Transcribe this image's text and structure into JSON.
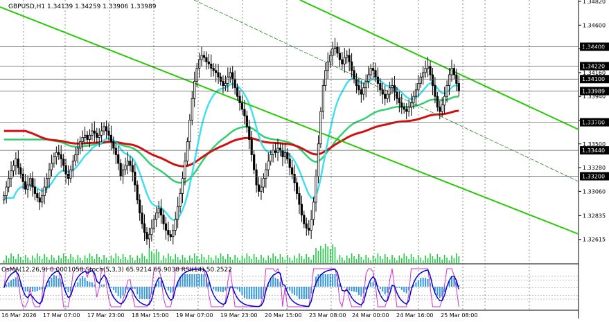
{
  "title": "GBPUSD,H1  1.34139 1.34259 1.33906 1.33989",
  "indicator_title": "OsMA(12,26,9) 0.0001058  Stoch(5,3,3) 65.9214 65.9038  RSI(14) 50.2522",
  "colors": {
    "background": "#ffffff",
    "bull": "#000000",
    "bear": "#000000",
    "ema_red": "#d01010",
    "ema_green": "#30d070",
    "ema_cyan": "#40e0f0",
    "channel": "#22cc00",
    "level_label_bg": "#000000",
    "volume": "#22cc44",
    "osma": "#3399dd",
    "stoch_main": "#000080",
    "stoch_signal": "#cc33cc",
    "rsi": "#0000cc"
  },
  "chart_data": {
    "type": "candlestick",
    "symbol": "GBPUSD",
    "timeframe": "H1",
    "ylim": [
      1.32395,
      1.3482
    ],
    "price_ticks": [
      "1.34820",
      "1.34600",
      "1.34380",
      "1.34160",
      "1.33940",
      "1.33720",
      "1.33500",
      "1.33280",
      "1.33060",
      "1.32835",
      "1.32615",
      "1.32395"
    ],
    "levels": [
      {
        "value": 1.344,
        "label": "1.34400"
      },
      {
        "value": 1.3422,
        "label": "1.34220"
      },
      {
        "value": 1.341,
        "label": "1.34100"
      },
      {
        "value": 1.33989,
        "label": "1.33989"
      },
      {
        "value": 1.337,
        "label": "1.33700"
      },
      {
        "value": 1.3344,
        "label": "1.33440"
      },
      {
        "value": 1.332,
        "label": "1.33200"
      }
    ],
    "x_labels": [
      "16 Mar 2026",
      "17 Mar 07:00",
      "17 Mar 23:00",
      "18 Mar 15:00",
      "19 Mar 07:00",
      "19 Mar 23:00",
      "20 Mar 15:00",
      "23 Mar 08:00",
      "24 Mar 00:00",
      "24 Mar 16:00",
      "25 Mar 08:00"
    ],
    "closes": [
      1.3302,
      1.331,
      1.3318,
      1.3325,
      1.333,
      1.3336,
      1.3328,
      1.3322,
      1.3315,
      1.3308,
      1.3312,
      1.3318,
      1.331,
      1.3304,
      1.33,
      1.3296,
      1.3302,
      1.331,
      1.3318,
      1.3326,
      1.3332,
      1.3338,
      1.3342,
      1.334,
      1.3336,
      1.333,
      1.3322,
      1.3318,
      1.3326,
      1.3334,
      1.334,
      1.3346,
      1.3352,
      1.3356,
      1.3358,
      1.3354,
      1.3358,
      1.3362,
      1.336,
      1.3356,
      1.3358,
      1.3362,
      1.3366,
      1.3362,
      1.3358,
      1.3352,
      1.3346,
      1.334,
      1.3332,
      1.332,
      1.3326,
      1.333,
      1.3334,
      1.333,
      1.3324,
      1.3312,
      1.3298,
      1.3286,
      1.3276,
      1.3268,
      1.3262,
      1.3266,
      1.3272,
      1.328,
      1.3286,
      1.329,
      1.3284,
      1.3276,
      1.327,
      1.3266,
      1.3264,
      1.327,
      1.328,
      1.3292,
      1.3304,
      1.3318,
      1.3334,
      1.3352,
      1.3372,
      1.3392,
      1.3408,
      1.342,
      1.3428,
      1.3432,
      1.343,
      1.3426,
      1.3424,
      1.342,
      1.3418,
      1.3416,
      1.3412,
      1.3408,
      1.3404,
      1.3406,
      1.3412,
      1.3416,
      1.341,
      1.3402,
      1.3394,
      1.3388,
      1.3382,
      1.3376,
      1.3366,
      1.3354,
      1.334,
      1.3326,
      1.3312,
      1.3306,
      1.331,
      1.3318,
      1.3326,
      1.3334,
      1.334,
      1.3344,
      1.3342,
      1.3346,
      1.3344,
      1.3338,
      1.3342,
      1.3336,
      1.3328,
      1.3322,
      1.3314,
      1.3304,
      1.3294,
      1.3284,
      1.3276,
      1.3272,
      1.327,
      1.328,
      1.3296,
      1.332,
      1.335,
      1.338,
      1.3404,
      1.3418,
      1.3426,
      1.3432,
      1.3438,
      1.344,
      1.3434,
      1.3428,
      1.3424,
      1.343,
      1.3432,
      1.3426,
      1.3418,
      1.341,
      1.3404,
      1.34,
      1.3396,
      1.3402,
      1.3408,
      1.3414,
      1.342,
      1.3418,
      1.3412,
      1.3406,
      1.34,
      1.3396,
      1.3392,
      1.3396,
      1.3402,
      1.3404,
      1.3398,
      1.3392,
      1.3388,
      1.3384,
      1.3382,
      1.338,
      1.3384,
      1.3388,
      1.3394,
      1.34,
      1.3406,
      1.3412,
      1.3416,
      1.342,
      1.3422,
      1.3414,
      1.3404,
      1.3394,
      1.3384,
      1.338,
      1.3386,
      1.3394,
      1.3404,
      1.3414,
      1.342,
      1.3414,
      1.3406,
      1.33989
    ]
  }
}
